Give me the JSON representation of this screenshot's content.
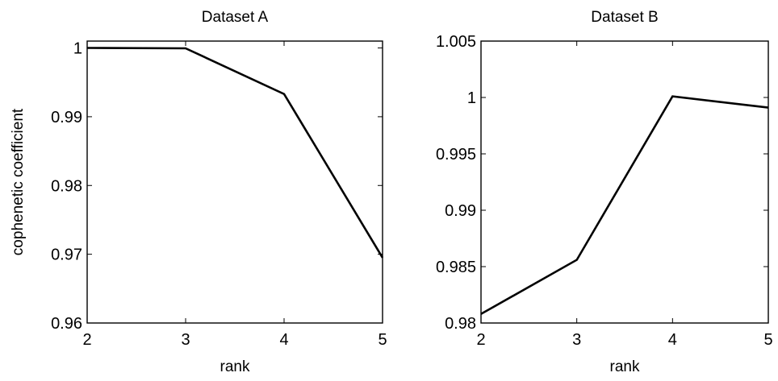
{
  "chart_data": [
    {
      "type": "line",
      "title": "Dataset A",
      "xlabel": "rank",
      "ylabel": "cophenetic coefficient",
      "xlim": [
        2,
        5
      ],
      "ylim": [
        0.96,
        1.001
      ],
      "xticks": [
        2,
        3,
        4,
        5
      ],
      "xtick_labels": [
        "2",
        "3",
        "4",
        "5"
      ],
      "yticks": [
        0.96,
        0.97,
        0.98,
        0.99,
        1
      ],
      "ytick_labels": [
        "0.96",
        "0.97",
        "0.98",
        "0.99",
        "1"
      ],
      "grid": false,
      "series": [
        {
          "x": [
            2,
            3,
            4,
            5
          ],
          "values": [
            1.0,
            0.99995,
            0.9933,
            0.9695
          ],
          "color": "#000000"
        }
      ]
    },
    {
      "type": "line",
      "title": "Dataset B",
      "xlabel": "rank",
      "ylabel": "",
      "xlim": [
        2,
        5
      ],
      "ylim": [
        0.98,
        1.005
      ],
      "xticks": [
        2,
        3,
        4,
        5
      ],
      "xtick_labels": [
        "2",
        "3",
        "4",
        "5"
      ],
      "yticks": [
        0.98,
        0.985,
        0.99,
        0.995,
        1,
        1.005
      ],
      "ytick_labels": [
        "0.98",
        "0.985",
        "0.99",
        "0.995",
        "1",
        "1.005"
      ],
      "grid": false,
      "series": [
        {
          "x": [
            2,
            3,
            4,
            5
          ],
          "values": [
            0.9808,
            0.9856,
            1.0001,
            0.9991
          ],
          "color": "#000000"
        }
      ]
    }
  ]
}
